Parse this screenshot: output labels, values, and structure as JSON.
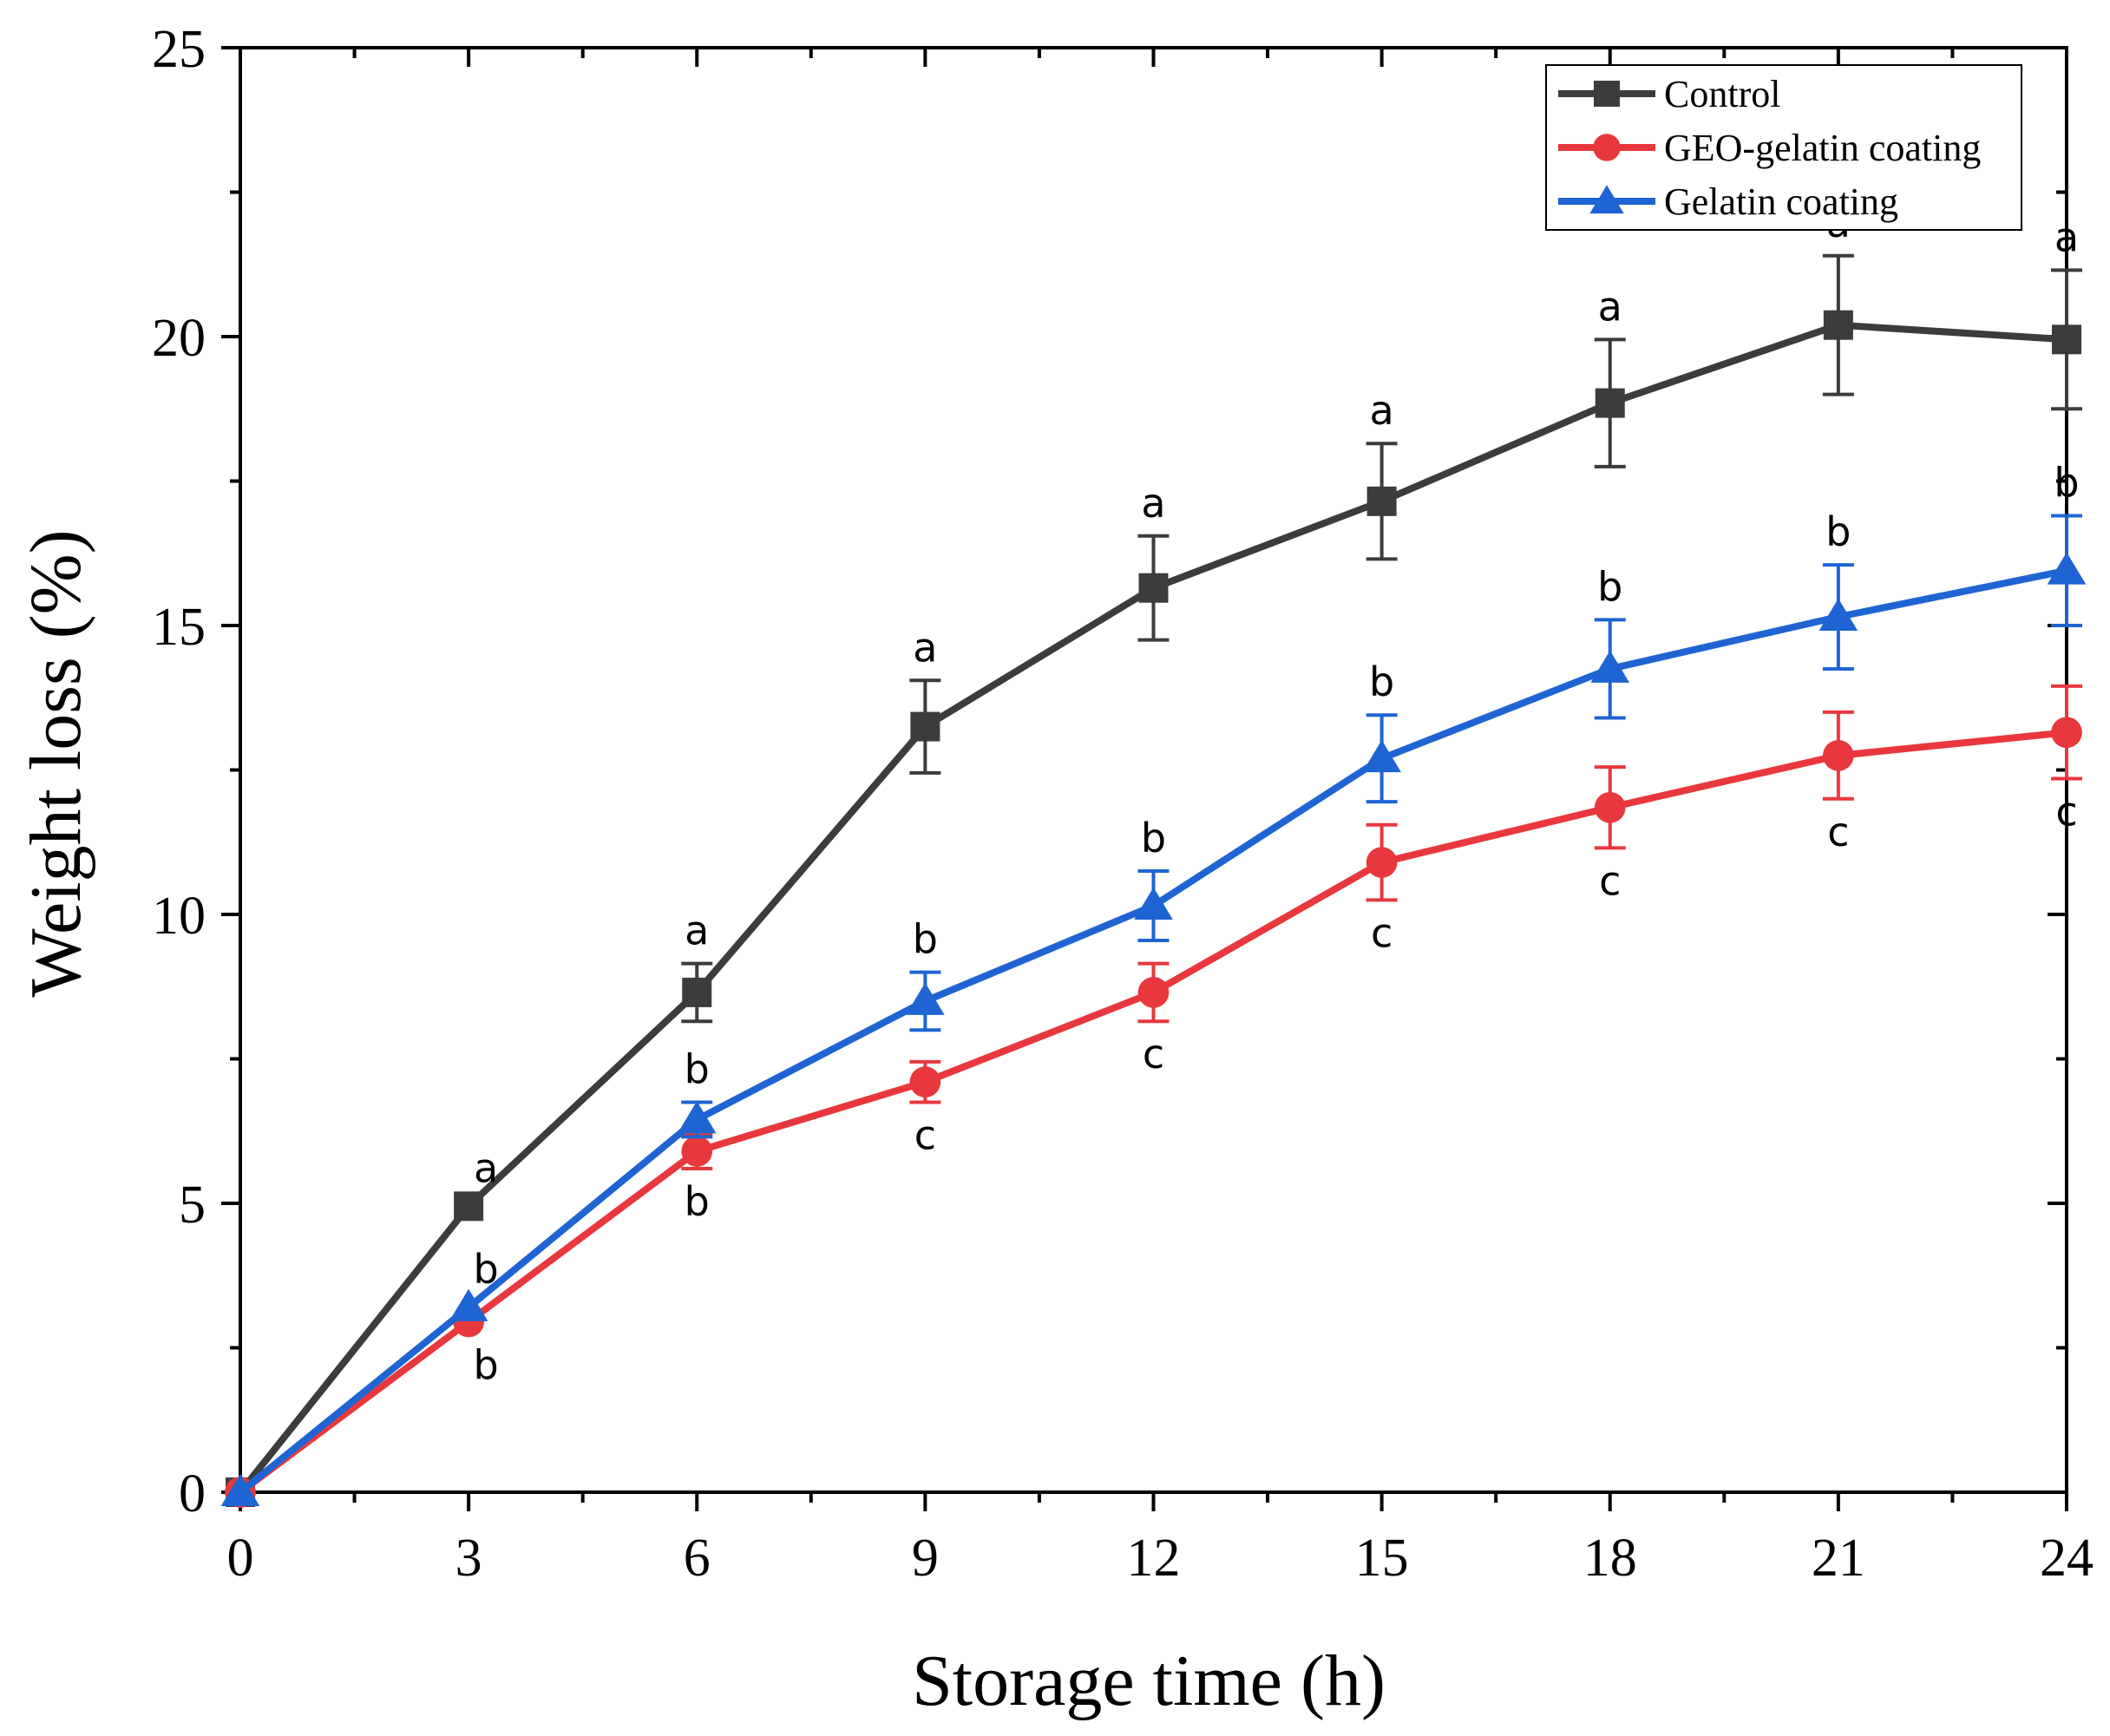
{
  "chart_data": {
    "type": "line",
    "title": "",
    "xlabel": "Storage time (h)",
    "ylabel": "Weight loss (%)",
    "xlim": [
      0,
      24
    ],
    "ylim": [
      0,
      25
    ],
    "xticks": [
      0,
      3,
      6,
      9,
      12,
      15,
      18,
      21,
      24
    ],
    "xtick_labels": [
      "0",
      "3",
      "6",
      "9",
      "12",
      "15",
      "18",
      "21",
      "24"
    ],
    "yticks": [
      0,
      5,
      10,
      15,
      20,
      25
    ],
    "ytick_labels": [
      "0",
      "5",
      "10",
      "15",
      "20",
      "25"
    ],
    "grid": false,
    "legend_position": "top-right",
    "x": [
      0,
      3,
      6,
      9,
      12,
      15,
      18,
      21,
      24
    ],
    "series": [
      {
        "name": "Control",
        "color": "#3c3c3c",
        "marker": "square",
        "values": [
          0,
          4.95,
          8.65,
          13.25,
          15.65,
          17.15,
          18.85,
          20.2,
          19.95
        ],
        "errors": [
          0,
          0,
          0.5,
          0.8,
          0.9,
          1.0,
          1.1,
          1.2,
          1.2
        ],
        "significance": [
          "",
          "a",
          "a",
          "a",
          "a",
          "a",
          "a",
          "a",
          "a"
        ],
        "sig_position": "above"
      },
      {
        "name": "GEO-gelatin coating",
        "color": "#e8383d",
        "marker": "circle",
        "values": [
          0,
          2.95,
          5.9,
          7.1,
          8.65,
          10.9,
          11.85,
          12.75,
          13.15
        ],
        "errors": [
          0,
          0,
          0.3,
          0.35,
          0.5,
          0.65,
          0.7,
          0.75,
          0.8
        ],
        "significance": [
          "",
          "b",
          "b",
          "c",
          "c",
          "c",
          "c",
          "c",
          "c"
        ],
        "sig_position": "below"
      },
      {
        "name": "Gelatin coating",
        "color": "#1f64d3",
        "marker": "triangle",
        "values": [
          0,
          3.2,
          6.45,
          8.5,
          10.15,
          12.7,
          14.25,
          15.15,
          15.95
        ],
        "errors": [
          0,
          0,
          0.3,
          0.5,
          0.6,
          0.75,
          0.85,
          0.9,
          0.95
        ],
        "significance": [
          "",
          "b",
          "b",
          "b",
          "b",
          "b",
          "b",
          "b",
          "b"
        ],
        "sig_position": "above"
      }
    ]
  }
}
